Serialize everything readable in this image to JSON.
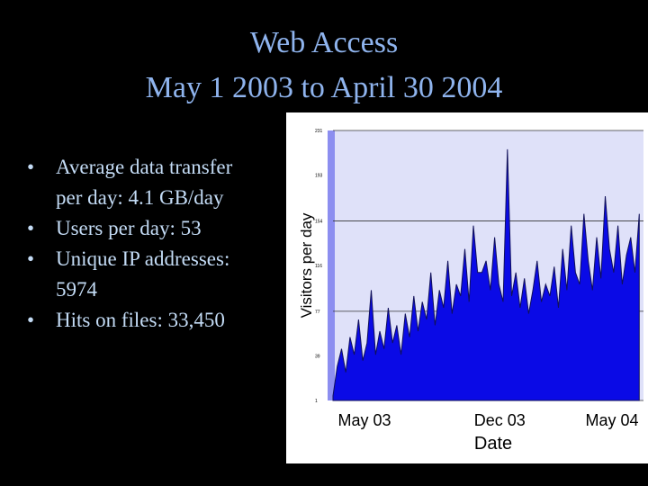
{
  "slide": {
    "title_lines": [
      "Web Access",
      "May 1 2003 to April 30 2004"
    ],
    "bullets": [
      [
        "Average data transfer",
        "per day:  4.1 GB/day"
      ],
      [
        "Users per day:  53"
      ],
      [
        "Unique IP addresses:",
        "5974"
      ],
      [
        "Hits on files:  33,450"
      ]
    ]
  },
  "chart_data": {
    "type": "area",
    "ylabel": "Visitors per day",
    "xlabel": "Date",
    "color": "#0a0ae6",
    "x": [
      0,
      5,
      10,
      15,
      20,
      25,
      30,
      35,
      40,
      45,
      50,
      55,
      60,
      65,
      70,
      75,
      80,
      85,
      90,
      95,
      100,
      105,
      110,
      115,
      120,
      125,
      130,
      135,
      140,
      145,
      150,
      155,
      160,
      165,
      170,
      175,
      180,
      185,
      190,
      195,
      200,
      205,
      210,
      215,
      220,
      225,
      230,
      235,
      240,
      245,
      250,
      255,
      260,
      265,
      270,
      275,
      280,
      285,
      290,
      295,
      300,
      305,
      310,
      315,
      320,
      325,
      330,
      335,
      340,
      345,
      350,
      355,
      360
    ],
    "values": [
      5,
      30,
      45,
      25,
      55,
      40,
      70,
      35,
      50,
      95,
      40,
      60,
      45,
      80,
      50,
      65,
      40,
      75,
      55,
      90,
      60,
      85,
      70,
      110,
      65,
      95,
      80,
      120,
      75,
      100,
      90,
      130,
      85,
      150,
      110,
      110,
      120,
      95,
      140,
      100,
      85,
      215,
      90,
      110,
      80,
      105,
      75,
      95,
      120,
      85,
      100,
      90,
      115,
      80,
      130,
      95,
      150,
      110,
      100,
      160,
      120,
      95,
      140,
      105,
      175,
      130,
      110,
      150,
      100,
      125,
      140,
      110,
      160
    ],
    "xlim": [
      0,
      365
    ],
    "xticks": [
      {
        "value": 37,
        "label": "May 03"
      },
      {
        "value": 196,
        "label": "Dec 03"
      },
      {
        "value": 328,
        "label": "May 04"
      }
    ],
    "ylim": [
      1,
      231
    ],
    "yticks": [
      1,
      39,
      77,
      116,
      154,
      193,
      231
    ],
    "grid": true
  }
}
